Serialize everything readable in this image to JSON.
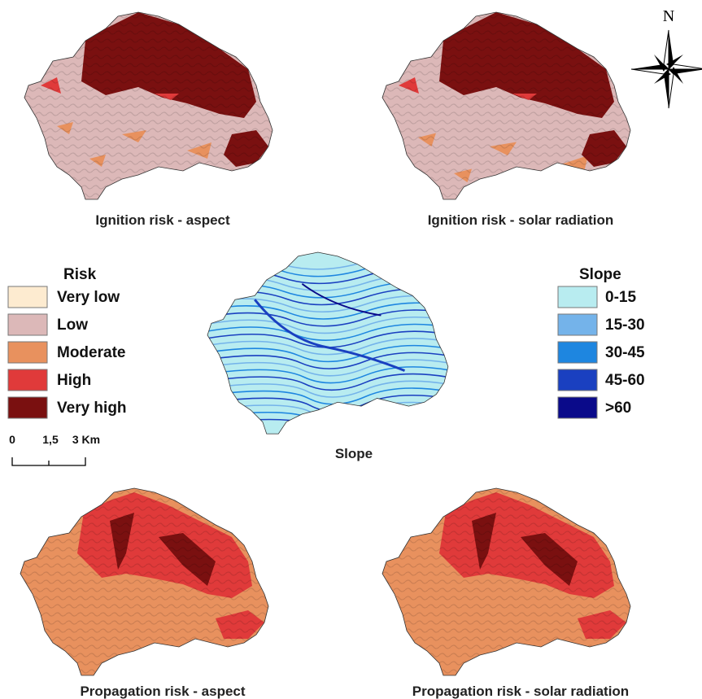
{
  "panels": [
    {
      "title": "Ignition risk  - aspect"
    },
    {
      "title": "Ignition risk - solar radiation"
    },
    {
      "title": "Slope"
    },
    {
      "title": "Propagation risk  - aspect"
    },
    {
      "title": "Propagation risk  - solar radiation"
    }
  ],
  "risk_legend": {
    "title": "Risk",
    "items": [
      {
        "label": "Very low",
        "color": "#fdebd0"
      },
      {
        "label": "Low",
        "color": "#dcb8b8"
      },
      {
        "label": "Moderate",
        "color": "#e8915e"
      },
      {
        "label": "High",
        "color": "#e03a3a"
      },
      {
        "label": "Very high",
        "color": "#7a1010"
      }
    ]
  },
  "slope_legend": {
    "title": "Slope",
    "items": [
      {
        "label": "0-15",
        "color": "#b8ecf0"
      },
      {
        "label": "15-30",
        "color": "#74b3ea"
      },
      {
        "label": "30-45",
        "color": "#1e86e0"
      },
      {
        "label": "45-60",
        "color": "#1a40c0"
      },
      {
        "label": ">60",
        "color": "#0a0a8a"
      }
    ]
  },
  "scale_bar": {
    "labels": [
      "0",
      "1,5",
      "3 Km"
    ]
  },
  "north_label": "N"
}
